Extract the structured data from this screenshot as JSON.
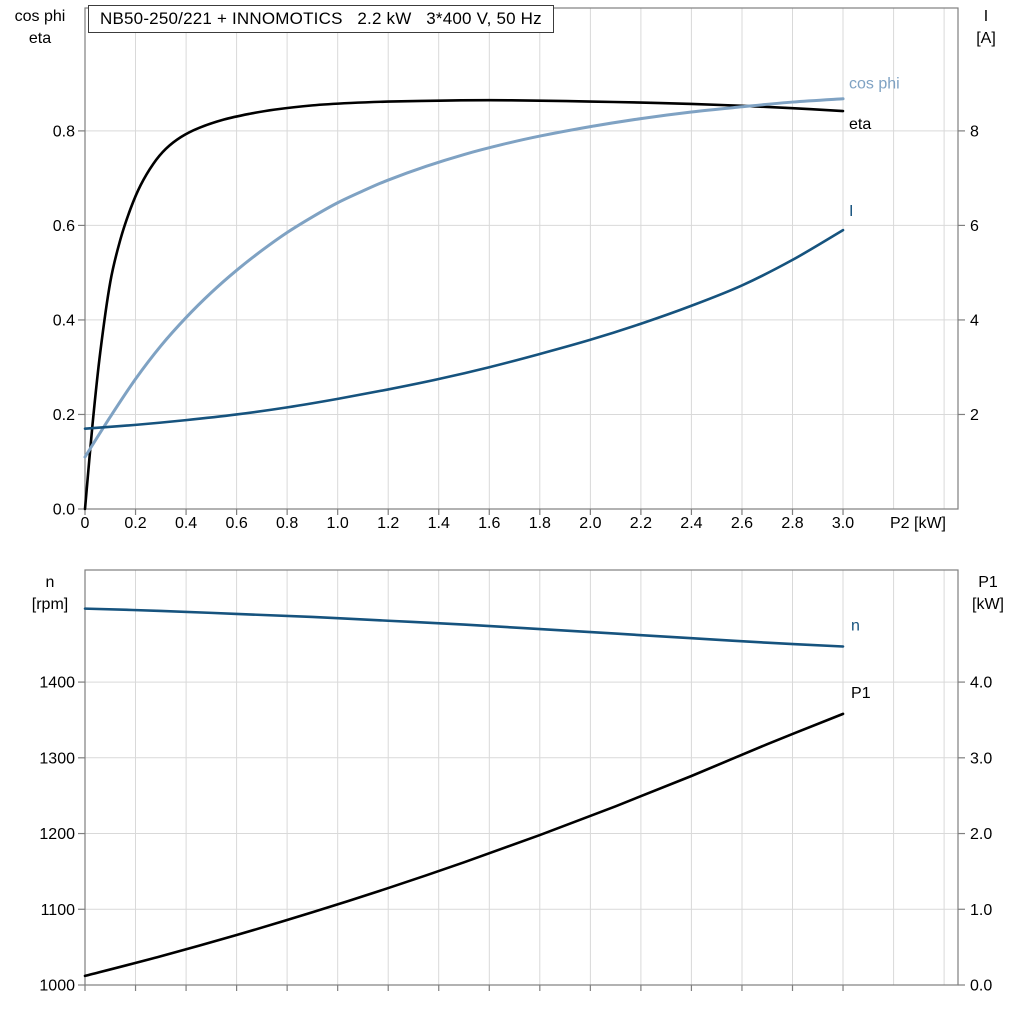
{
  "title_box": {
    "text": "NB50-250/221 + INNOMOTICS   2.2 kW   3*400 V, 50 Hz"
  },
  "colors": {
    "black": "#000000",
    "light_blue": "#7fa2c3",
    "dark_blue": "#16537e",
    "grid": "#d9d9d9",
    "frame": "#7f7f7f",
    "text": "#000000"
  },
  "chart_data": [
    {
      "id": "top",
      "type": "line",
      "xlabel": "P2 [kW]",
      "xlim": [
        0,
        3.455
      ],
      "x_ticks": {
        "values": [
          0,
          0.2,
          0.4,
          0.6,
          0.8,
          1.0,
          1.2,
          1.4,
          1.6,
          1.8,
          2.0,
          2.2,
          2.4,
          2.6,
          2.8,
          3.0
        ],
        "labels": [
          "0",
          "0.2",
          "0.4",
          "0.6",
          "0.8",
          "1.0",
          "1.2",
          "1.4",
          "1.6",
          "1.8",
          "2.0",
          "2.2",
          "2.4",
          "2.6",
          "2.8",
          "3.0"
        ],
        "show_labels": true
      },
      "left_axis": {
        "title_lines": [
          "cos phi",
          "eta"
        ],
        "lim": [
          0,
          1.06
        ],
        "tick_values": [
          0,
          0.2,
          0.4,
          0.6,
          0.8
        ],
        "tick_labels": [
          "0.0",
          "0.2",
          "0.4",
          "0.6",
          "0.8"
        ]
      },
      "right_axis": {
        "title_lines": [
          "I",
          "[A]"
        ],
        "lim": [
          0,
          10.6
        ],
        "tick_values": [
          2,
          4,
          6,
          8
        ],
        "tick_labels": [
          "2",
          "4",
          "6",
          "8"
        ]
      },
      "series": [
        {
          "name": "eta",
          "label": "eta",
          "axis": "left",
          "color_key": "black",
          "stroke_width": 2.6,
          "label_offset": [
            6,
            18
          ],
          "points": [
            [
              0,
              0
            ],
            [
              0.03,
              0.18
            ],
            [
              0.06,
              0.33
            ],
            [
              0.1,
              0.48
            ],
            [
              0.14,
              0.57
            ],
            [
              0.18,
              0.635
            ],
            [
              0.22,
              0.685
            ],
            [
              0.27,
              0.73
            ],
            [
              0.32,
              0.762
            ],
            [
              0.38,
              0.787
            ],
            [
              0.45,
              0.806
            ],
            [
              0.55,
              0.824
            ],
            [
              0.65,
              0.836
            ],
            [
              0.75,
              0.845
            ],
            [
              0.9,
              0.854
            ],
            [
              1.05,
              0.859
            ],
            [
              1.2,
              0.862
            ],
            [
              1.4,
              0.864
            ],
            [
              1.6,
              0.865
            ],
            [
              1.8,
              0.864
            ],
            [
              2.0,
              0.862
            ],
            [
              2.2,
              0.86
            ],
            [
              2.4,
              0.857
            ],
            [
              2.6,
              0.853
            ],
            [
              2.8,
              0.848
            ],
            [
              3.0,
              0.842
            ]
          ]
        },
        {
          "name": "cos phi",
          "label": "cos phi",
          "axis": "left",
          "color_key": "light_blue",
          "stroke_width": 3,
          "label_offset": [
            6,
            -10
          ],
          "points": [
            [
              0,
              0.11
            ],
            [
              0.1,
              0.195
            ],
            [
              0.2,
              0.275
            ],
            [
              0.3,
              0.345
            ],
            [
              0.4,
              0.405
            ],
            [
              0.5,
              0.458
            ],
            [
              0.6,
              0.505
            ],
            [
              0.7,
              0.547
            ],
            [
              0.8,
              0.585
            ],
            [
              0.9,
              0.618
            ],
            [
              1.0,
              0.648
            ],
            [
              1.1,
              0.673
            ],
            [
              1.2,
              0.696
            ],
            [
              1.35,
              0.725
            ],
            [
              1.5,
              0.75
            ],
            [
              1.65,
              0.771
            ],
            [
              1.8,
              0.789
            ],
            [
              2.0,
              0.809
            ],
            [
              2.2,
              0.826
            ],
            [
              2.4,
              0.84
            ],
            [
              2.6,
              0.851
            ],
            [
              2.8,
              0.861
            ],
            [
              3.0,
              0.868
            ]
          ]
        },
        {
          "name": "I",
          "label": "I",
          "axis": "right",
          "color_key": "dark_blue",
          "stroke_width": 2.6,
          "label_offset": [
            6,
            -14
          ],
          "points": [
            [
              0,
              1.7
            ],
            [
              0.2,
              1.78
            ],
            [
              0.4,
              1.88
            ],
            [
              0.6,
              2.0
            ],
            [
              0.8,
              2.15
            ],
            [
              1.0,
              2.33
            ],
            [
              1.2,
              2.53
            ],
            [
              1.4,
              2.75
            ],
            [
              1.6,
              3.0
            ],
            [
              1.8,
              3.28
            ],
            [
              2.0,
              3.58
            ],
            [
              2.2,
              3.92
            ],
            [
              2.4,
              4.3
            ],
            [
              2.6,
              4.73
            ],
            [
              2.8,
              5.27
            ],
            [
              3.0,
              5.9
            ]
          ]
        }
      ]
    },
    {
      "id": "bottom",
      "type": "line",
      "xlabel": "",
      "xlim": [
        0,
        3.455
      ],
      "x_ticks": {
        "values": [
          0,
          0.2,
          0.4,
          0.6,
          0.8,
          1.0,
          1.2,
          1.4,
          1.6,
          1.8,
          2.0,
          2.2,
          2.4,
          2.6,
          2.8,
          3.0
        ],
        "labels": [],
        "show_labels": false
      },
      "left_axis": {
        "title_lines": [
          "n",
          "[rpm]"
        ],
        "lim": [
          1000,
          1548
        ],
        "tick_values": [
          1000,
          1100,
          1200,
          1300,
          1400
        ],
        "tick_labels": [
          "1000",
          "1100",
          "1200",
          "1300",
          "1400"
        ]
      },
      "right_axis": {
        "title_lines": [
          "P1",
          "[kW]"
        ],
        "lim": [
          0,
          5.48
        ],
        "tick_values": [
          0,
          1,
          2,
          3,
          4
        ],
        "tick_labels": [
          "0.0",
          "1.0",
          "2.0",
          "3.0",
          "4.0"
        ]
      },
      "series": [
        {
          "name": "n",
          "label": "n",
          "axis": "left",
          "color_key": "dark_blue",
          "stroke_width": 2.6,
          "label_offset": [
            8,
            -16
          ],
          "points": [
            [
              0,
              1497
            ],
            [
              0.3,
              1494
            ],
            [
              0.6,
              1490
            ],
            [
              0.9,
              1486
            ],
            [
              1.2,
              1481
            ],
            [
              1.5,
              1476
            ],
            [
              1.8,
              1470
            ],
            [
              2.1,
              1464
            ],
            [
              2.4,
              1458
            ],
            [
              2.7,
              1452
            ],
            [
              3.0,
              1447
            ]
          ]
        },
        {
          "name": "P1",
          "label": "P1",
          "axis": "right",
          "color_key": "black",
          "stroke_width": 2.6,
          "label_offset": [
            8,
            -16
          ],
          "points": [
            [
              0,
              0.12
            ],
            [
              0.3,
              0.38
            ],
            [
              0.6,
              0.66
            ],
            [
              0.9,
              0.96
            ],
            [
              1.2,
              1.28
            ],
            [
              1.5,
              1.62
            ],
            [
              1.8,
              1.98
            ],
            [
              2.1,
              2.36
            ],
            [
              2.4,
              2.76
            ],
            [
              2.7,
              3.18
            ],
            [
              3.0,
              3.58
            ]
          ]
        }
      ]
    }
  ]
}
